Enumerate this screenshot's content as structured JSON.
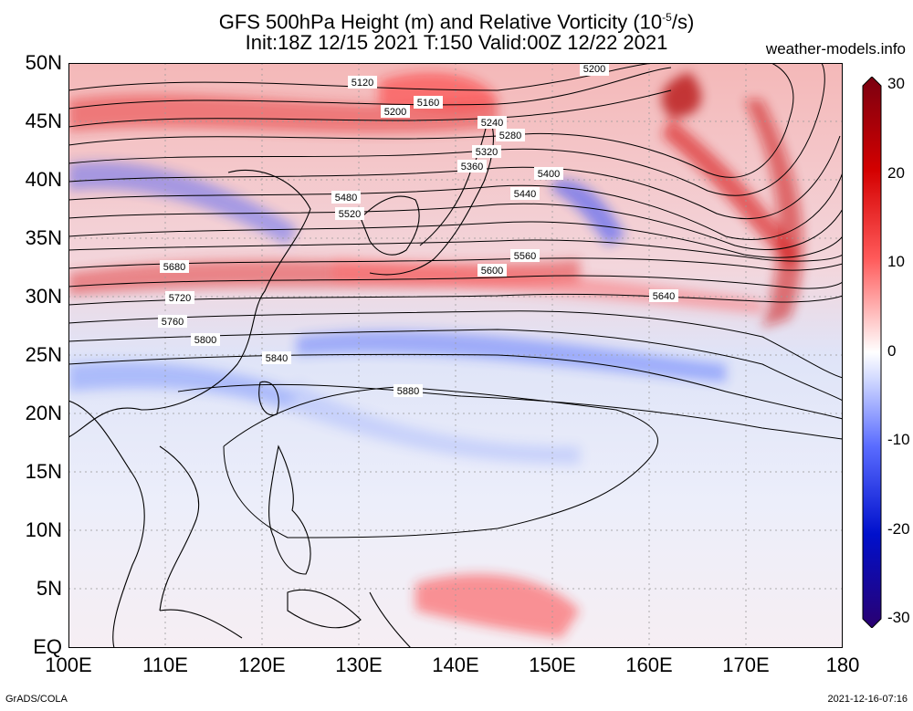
{
  "title": {
    "line1": "GFS 500hPa Height (m) and Relative Vorticity (10",
    "exp": "-5",
    "line1_end": "/s)",
    "line2": "Init:18Z 12/15 2021 T:150 Valid:00Z 12/22 2021"
  },
  "site": "weather-models.info",
  "lat_labels": [
    "50N",
    "45N",
    "40N",
    "35N",
    "30N",
    "25N",
    "20N",
    "15N",
    "10N",
    "5N",
    "EQ"
  ],
  "lon_labels": [
    "100E",
    "110E",
    "120E",
    "130E",
    "140E",
    "150E",
    "160E",
    "170E",
    "180"
  ],
  "colorbar": {
    "labels": [
      "30",
      "20",
      "10",
      "0",
      "-10",
      "-20",
      "-30"
    ],
    "colors": [
      "#7a0010",
      "#d40000",
      "#ff5a5a",
      "#ffd0d0",
      "#ffffff",
      "#d0d8ff",
      "#5a6cff",
      "#0010cc",
      "#2a0070"
    ]
  },
  "contour_labels": [
    "5120",
    "5160",
    "5200",
    "5200",
    "5240",
    "5280",
    "5320",
    "5360",
    "5400",
    "5440",
    "5480",
    "5520",
    "5560",
    "5600",
    "5640",
    "5680",
    "5720",
    "5760",
    "5800",
    "5840",
    "5880"
  ],
  "footer": {
    "left": "GrADS/COLA",
    "right": "2021-12-16-07:16"
  }
}
